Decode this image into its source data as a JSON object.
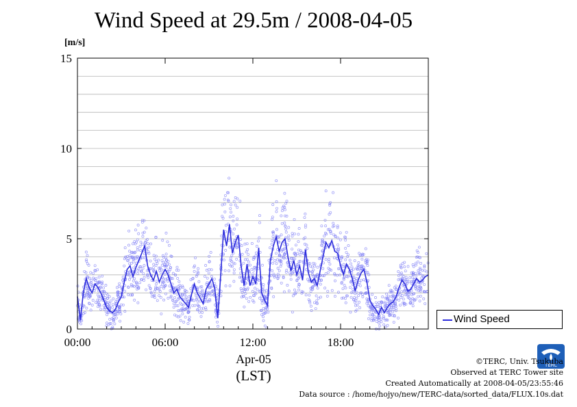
{
  "title": "Wind Speed at 29.5m / 2008-04-05",
  "unit_label": "[m/s]",
  "x_axis_date": "Apr-05",
  "x_axis_tz": "(LST)",
  "legend_label": "Wind Speed",
  "credits": {
    "line1": "©TERC, Univ. Tsukuba",
    "line2": "Observed at TERC Tower site",
    "line3": "Created Automatically at 2008-04-05/23:55:46",
    "line4": "Data source : /home/hojyo/new/TERC-data/sorted_data/FLUX.10s.dat"
  },
  "logo_text": "TERC",
  "colors": {
    "series": "#2b2bdc",
    "scatter": "#7f7ff5",
    "grid": "#b4b4b4"
  },
  "chart_data": {
    "type": "line",
    "title": "Wind Speed at 29.5m / 2008-04-05",
    "ylabel": "[m/s]",
    "xlabel": "Apr-05 (LST)",
    "ylim": [
      0,
      15
    ],
    "xlim_hours": [
      0,
      24
    ],
    "x_ticks": [
      "00:00",
      "06:00",
      "12:00",
      "18:00"
    ],
    "y_ticks": [
      "0",
      "5",
      "10",
      "15"
    ],
    "grid": true,
    "legend_position": "right-bottom",
    "series": [
      {
        "name": "Wind Speed",
        "x_hours": [
          0.0,
          0.2,
          0.4,
          0.6,
          0.8,
          1.0,
          1.2,
          1.4,
          1.6,
          1.8,
          2.0,
          2.2,
          2.4,
          2.6,
          2.8,
          3.0,
          3.2,
          3.4,
          3.6,
          3.8,
          4.0,
          4.2,
          4.4,
          4.6,
          4.8,
          5.0,
          5.2,
          5.4,
          5.6,
          5.8,
          6.0,
          6.2,
          6.4,
          6.6,
          6.8,
          7.0,
          7.2,
          7.4,
          7.6,
          7.8,
          8.0,
          8.2,
          8.4,
          8.6,
          8.8,
          9.0,
          9.2,
          9.4,
          9.6,
          9.8,
          10.0,
          10.2,
          10.4,
          10.6,
          10.8,
          11.0,
          11.2,
          11.4,
          11.6,
          11.8,
          12.0,
          12.2,
          12.4,
          12.6,
          12.8,
          13.0,
          13.2,
          13.4,
          13.6,
          13.8,
          14.0,
          14.2,
          14.4,
          14.6,
          14.8,
          15.0,
          15.2,
          15.4,
          15.6,
          15.8,
          16.0,
          16.2,
          16.4,
          16.6,
          16.8,
          17.0,
          17.2,
          17.4,
          17.6,
          17.8,
          18.0,
          18.2,
          18.4,
          18.6,
          18.8,
          19.0,
          19.2,
          19.4,
          19.6,
          19.8,
          20.0,
          20.2,
          20.4,
          20.6,
          20.8,
          21.0,
          21.2,
          21.4,
          21.6,
          21.8,
          22.0,
          22.2,
          22.4,
          22.6,
          22.8,
          23.0,
          23.2,
          23.4,
          23.6,
          23.8,
          24.0
        ],
        "values": [
          1.8,
          0.5,
          2.0,
          2.8,
          2.3,
          2.0,
          2.5,
          2.3,
          2.0,
          1.6,
          1.2,
          1.0,
          0.9,
          1.1,
          1.5,
          1.8,
          2.6,
          3.3,
          3.5,
          2.9,
          3.4,
          3.8,
          4.2,
          4.6,
          3.5,
          3.0,
          2.7,
          3.2,
          2.6,
          3.0,
          3.3,
          3.0,
          2.5,
          2.0,
          2.2,
          1.8,
          1.6,
          1.4,
          1.2,
          1.9,
          2.5,
          2.0,
          1.7,
          1.4,
          2.2,
          2.5,
          2.8,
          2.2,
          0.6,
          3.0,
          5.5,
          4.6,
          5.8,
          4.2,
          4.8,
          5.2,
          3.5,
          2.4,
          3.6,
          2.4,
          2.9,
          2.5,
          4.5,
          2.0,
          1.6,
          1.3,
          3.8,
          4.6,
          5.1,
          4.3,
          4.8,
          5.0,
          4.0,
          3.2,
          3.8,
          3.0,
          3.5,
          2.7,
          4.4,
          3.1,
          2.6,
          2.8,
          2.4,
          3.2,
          4.0,
          4.8,
          4.5,
          4.9,
          4.3,
          4.2,
          3.5,
          3.0,
          3.6,
          3.3,
          2.8,
          2.1,
          2.7,
          3.1,
          3.3,
          2.6,
          1.6,
          1.3,
          1.1,
          0.8,
          1.2,
          0.9,
          1.2,
          1.4,
          1.5,
          1.8,
          2.3,
          2.7,
          2.5,
          2.1,
          2.2,
          2.5,
          2.8,
          2.6,
          2.7,
          2.9,
          3.0
        ]
      }
    ]
  }
}
